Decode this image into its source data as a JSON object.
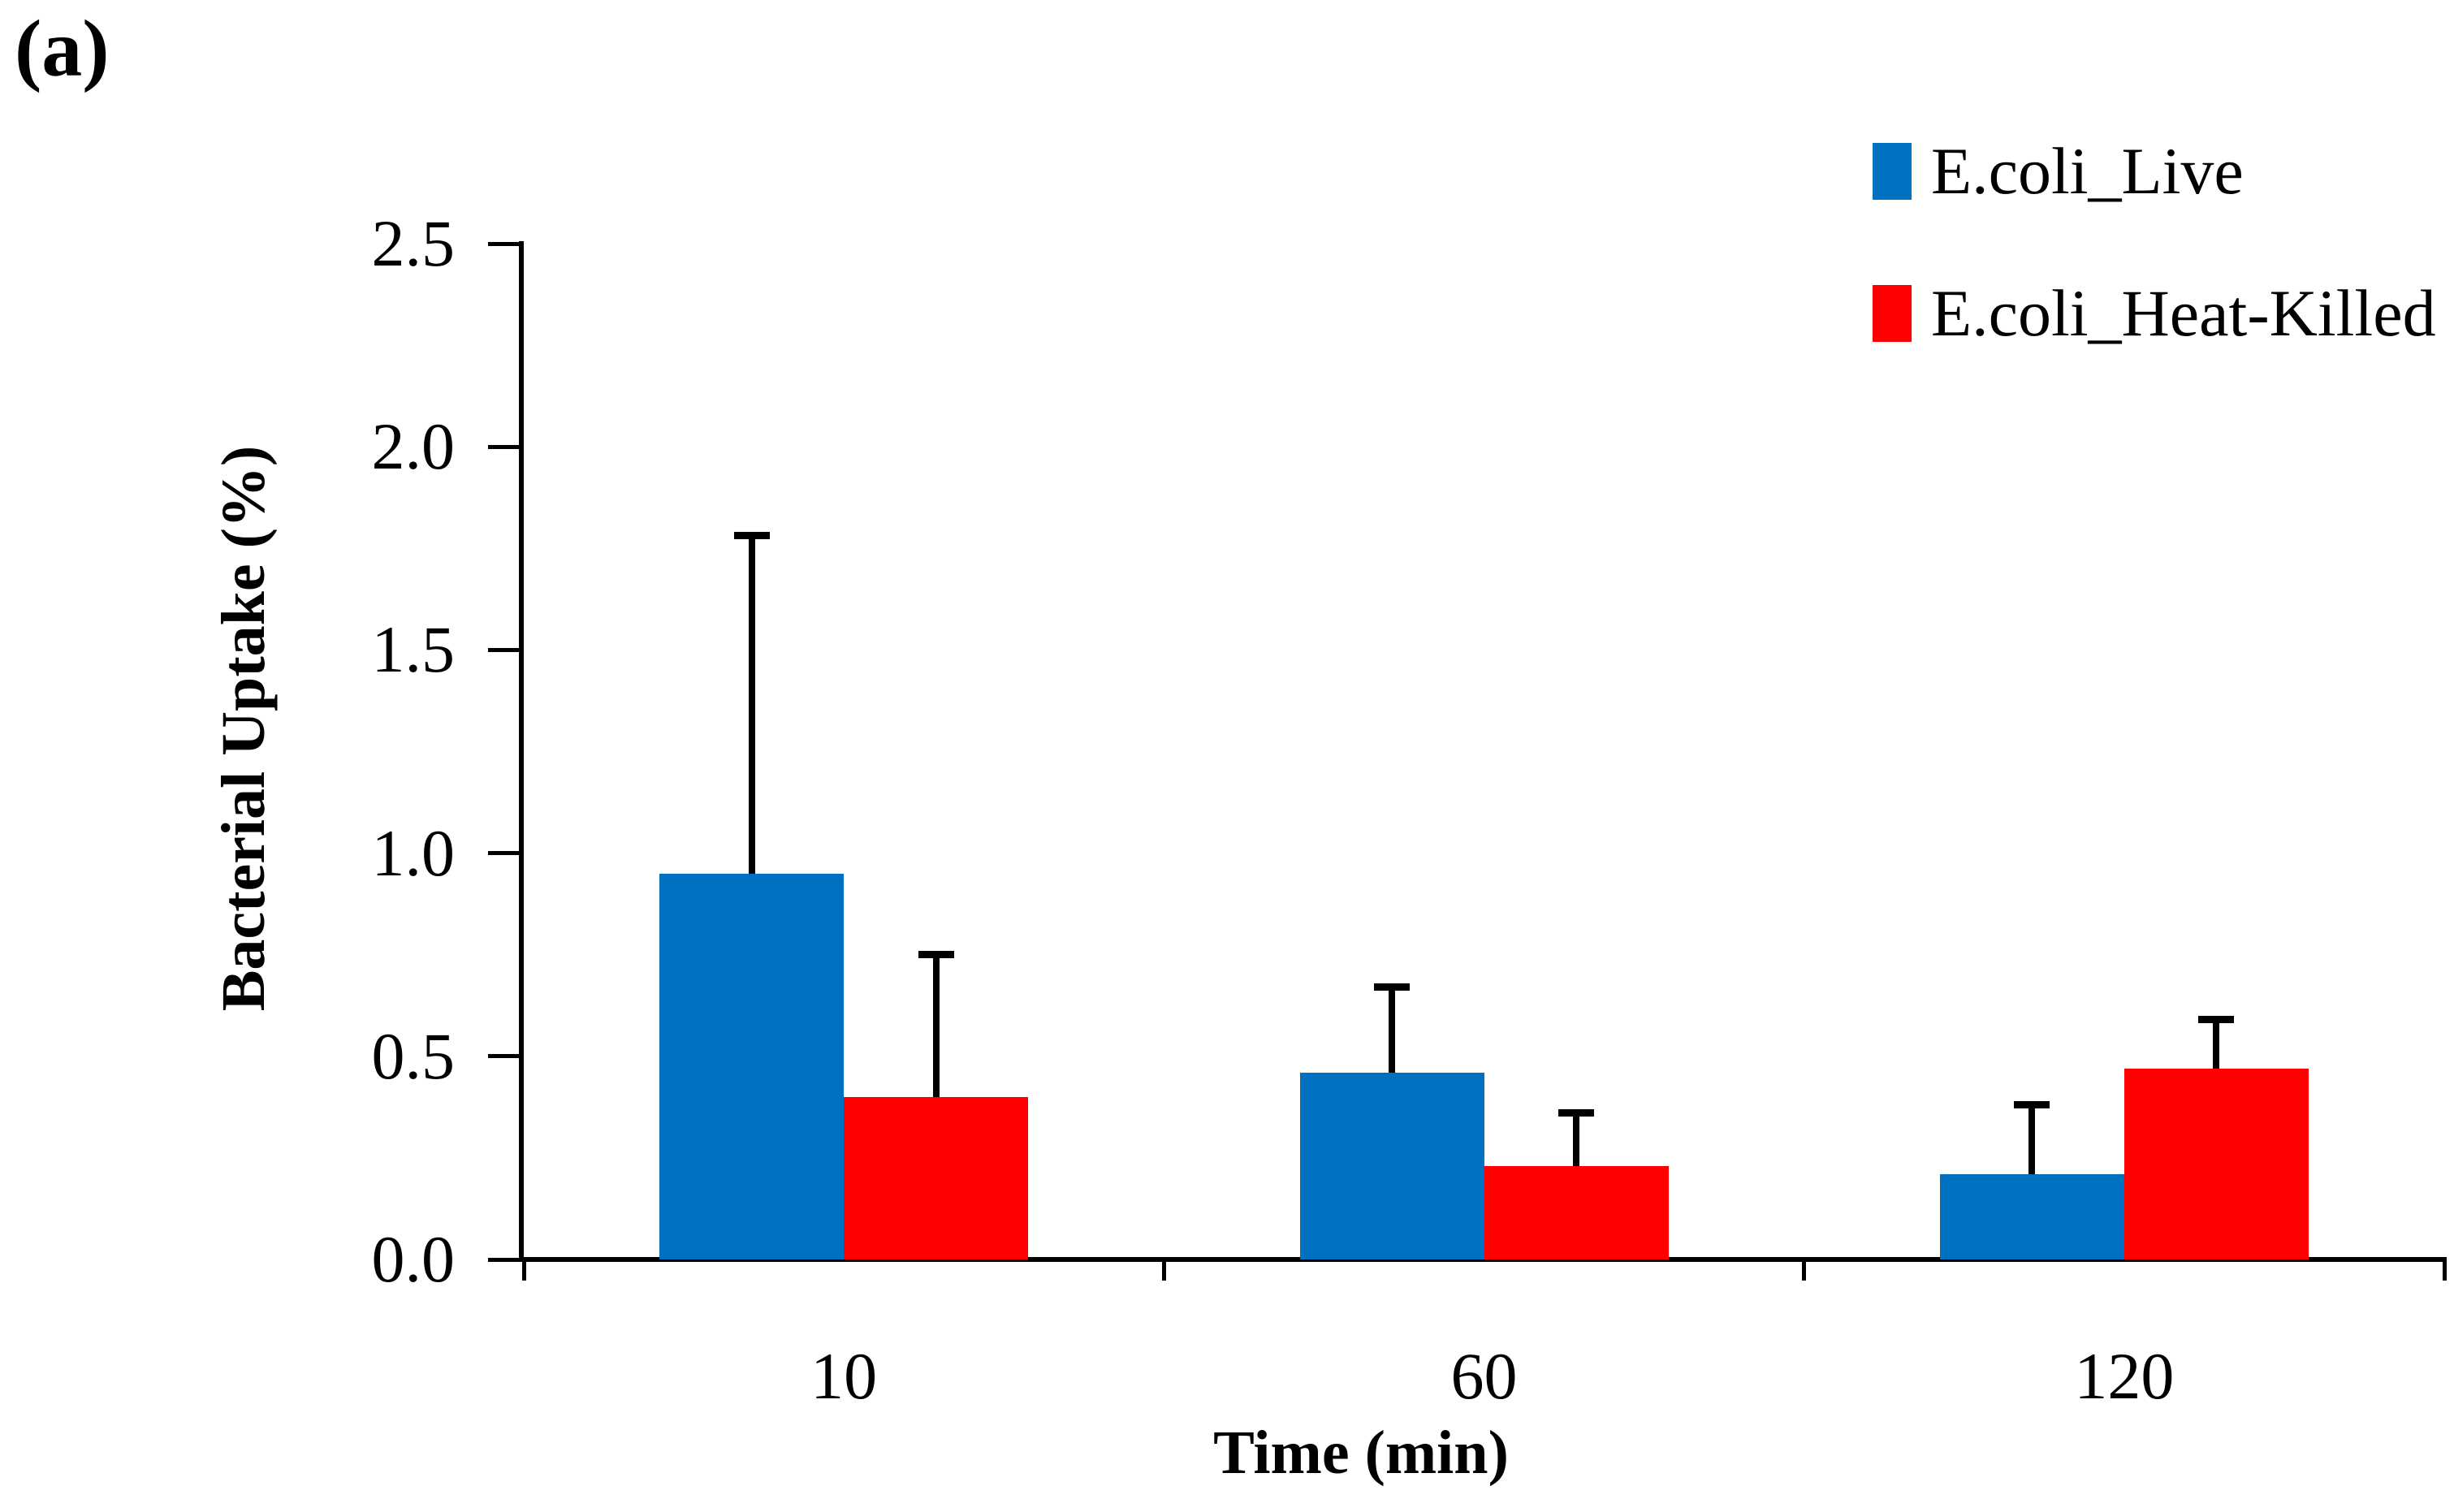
{
  "panel_label": "(a)",
  "chart_data": {
    "type": "bar",
    "title": "",
    "xlabel": "Time (min)",
    "ylabel": "Bacterial Uptake (%)",
    "categories": [
      "10",
      "60",
      "120"
    ],
    "series": [
      {
        "name": "E.coli_Live",
        "color": "#0070C0",
        "values": [
          0.95,
          0.46,
          0.21
        ],
        "errors_plus": [
          0.84,
          0.22,
          0.18
        ]
      },
      {
        "name": "E.coli_Heat-Killed",
        "color": "#FF0000",
        "values": [
          0.4,
          0.23,
          0.47
        ],
        "errors_plus": [
          0.36,
          0.14,
          0.13
        ]
      }
    ],
    "ylim": [
      0.0,
      2.5
    ],
    "y_ticks": [
      "0.0",
      "0.5",
      "1.0",
      "1.5",
      "2.0",
      "2.5"
    ],
    "error_bars": "upper-only",
    "grid": false,
    "legend_position": "top-right",
    "axis_color": "#000000"
  }
}
